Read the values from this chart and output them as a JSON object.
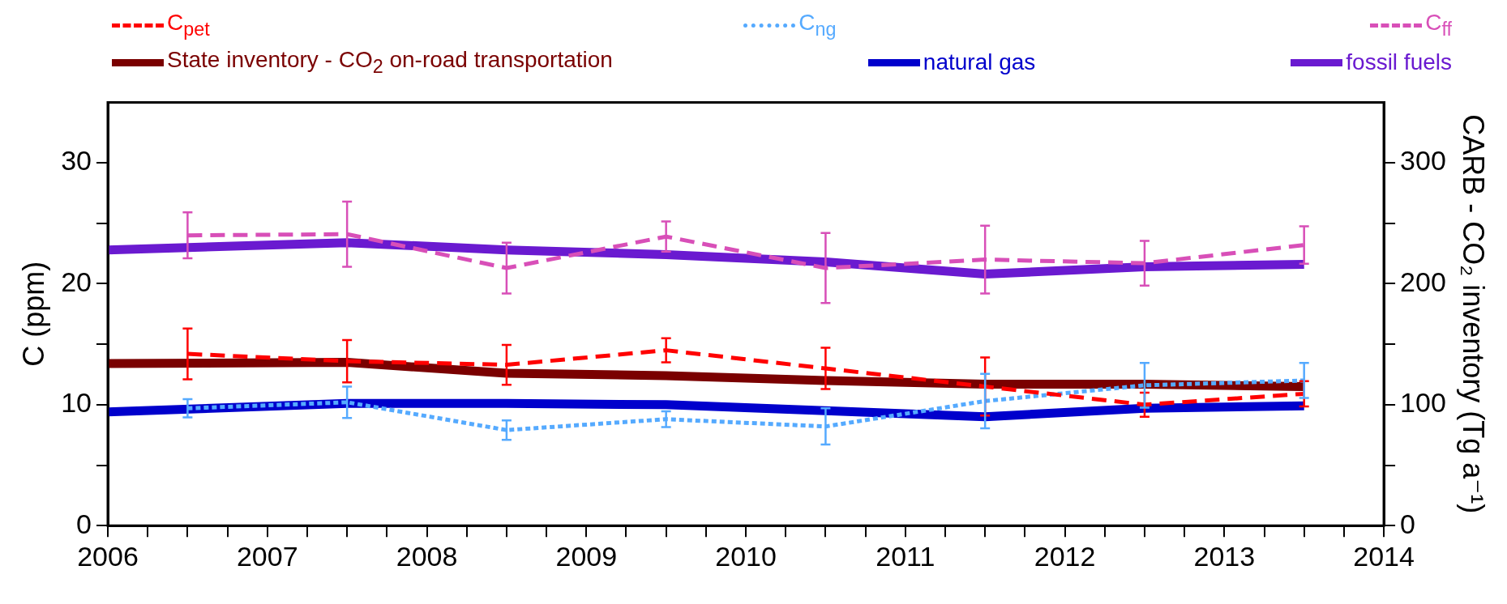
{
  "chart_data": {
    "type": "line",
    "ylabel": "C (ppm)",
    "y2label": "CARB - CO₂ inventory (Tg a⁻¹)",
    "xlim": [
      2006,
      2014
    ],
    "xticks": [
      2006,
      {
        "value": 2006.25,
        "label": null
      },
      {
        "value": 2006.5,
        "label": null
      },
      {
        "value": 2006.75,
        "label": null
      },
      2007,
      {
        "value": 2007.25,
        "label": null
      },
      {
        "value": 2007.5,
        "label": null
      },
      {
        "value": 2007.75,
        "label": null
      },
      2008,
      {
        "value": 2008.25,
        "label": null
      },
      {
        "value": 2008.5,
        "label": null
      },
      {
        "value": 2008.75,
        "label": null
      },
      2009,
      {
        "value": 2009.25,
        "label": null
      },
      {
        "value": 2009.5,
        "label": null
      },
      {
        "value": 2009.75,
        "label": null
      },
      2010,
      {
        "value": 2010.25,
        "label": null
      },
      {
        "value": 2010.5,
        "label": null
      },
      {
        "value": 2010.75,
        "label": null
      },
      2011,
      {
        "value": 2011.25,
        "label": null
      },
      {
        "value": 2011.5,
        "label": null
      },
      {
        "value": 2011.75,
        "label": null
      },
      2012,
      {
        "value": 2012.25,
        "label": null
      },
      {
        "value": 2012.5,
        "label": null
      },
      {
        "value": 2012.75,
        "label": null
      },
      2013,
      {
        "value": 2013.25,
        "label": null
      },
      {
        "value": 2013.5,
        "label": null
      },
      {
        "value": 2013.75,
        "label": null
      },
      2014
    ],
    "ylim": [
      0,
      35
    ],
    "yticks": [
      0,
      {
        "value": 5,
        "label": null
      },
      10,
      {
        "value": 15,
        "label": null
      },
      20,
      {
        "value": 25,
        "label": null
      },
      30
    ],
    "y2lim": [
      0,
      350
    ],
    "y2ticks": [
      0,
      {
        "value": 50,
        "label": null
      },
      100,
      {
        "value": 150,
        "label": null
      },
      200,
      {
        "value": 250,
        "label": null
      },
      300
    ],
    "legend": "top",
    "grid": false,
    "marker": "none",
    "series": [
      {
        "name": "C$_{pet}$",
        "color": "#ff0000",
        "line_style": "dashed",
        "x": [
          2006.5,
          2007.5,
          2008.5,
          2009.5,
          2010.5,
          2011.5,
          2012.5,
          2013.5
        ],
        "values": [
          14.2,
          13.6,
          13.3,
          14.5,
          13.0,
          11.5,
          10.0,
          10.9
        ],
        "errors": [
          2.1,
          1.75,
          1.65,
          1.0,
          1.7,
          2.4,
          1.0,
          1.05
        ]
      },
      {
        "name": "C$_{ng}$",
        "color": "#55aaff",
        "line_style": "dotted",
        "x": [
          2006.5,
          2007.5,
          2008.5,
          2009.5,
          2010.5,
          2011.5,
          2012.5,
          2013.5
        ],
        "values": [
          9.7,
          10.2,
          7.9,
          8.8,
          8.2,
          10.3,
          11.6,
          12.0
        ],
        "errors": [
          0.75,
          1.3,
          0.8,
          0.65,
          1.5,
          2.25,
          1.85,
          1.45
        ]
      },
      {
        "name": "C$_{ff}$",
        "color": "#d84fb8",
        "line_style": "dashed",
        "x": [
          2006.5,
          2007.5,
          2008.5,
          2009.5,
          2010.5,
          2011.5,
          2012.5,
          2013.5
        ],
        "values": [
          24.0,
          24.1,
          21.3,
          23.9,
          21.3,
          22.0,
          21.7,
          23.2
        ],
        "errors": [
          1.9,
          2.7,
          2.1,
          1.25,
          2.9,
          2.8,
          1.85,
          1.55
        ]
      },
      {
        "name": "State inventory - CO$_{2}$ on-road transportation",
        "color": "#7a0000",
        "line_style": "solid",
        "axis": "y2",
        "x": [
          2006,
          2007.5,
          2008.5,
          2009.5,
          2010.5,
          2011.5,
          2012.5,
          2013.5
        ],
        "values": [
          134,
          135,
          126,
          124,
          120,
          117,
          117,
          115
        ]
      },
      {
        "name": "natural gas",
        "color": "#0000cc",
        "line_style": "solid",
        "axis": "y2",
        "x": [
          2006,
          2007.5,
          2008.5,
          2009.5,
          2010.5,
          2011.5,
          2012.5,
          2013.5
        ],
        "values": [
          94,
          101,
          101,
          100,
          95,
          90,
          97,
          99
        ]
      },
      {
        "name": "fossil fuels",
        "color": "#6a1ad0",
        "line_style": "solid",
        "axis": "y2",
        "x": [
          2006,
          2007.5,
          2008.5,
          2009.5,
          2010.5,
          2011.5,
          2012.5,
          2013.5
        ],
        "values": [
          228,
          234,
          228,
          224,
          218,
          208,
          214,
          216
        ]
      }
    ]
  }
}
